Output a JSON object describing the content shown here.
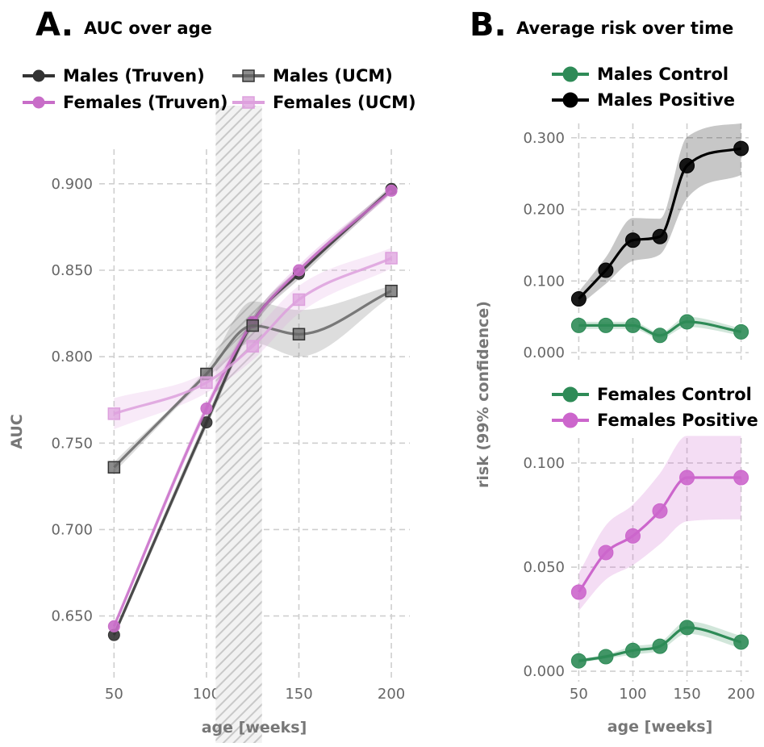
{
  "colors": {
    "males_truven": "#333333",
    "females_truven": "#c86dc8",
    "males_ucm": "#666666",
    "females_ucm": "#dda0dd",
    "control": "#2e8b57",
    "males_positive": "#000000",
    "females_positive": "#cc66cc"
  },
  "chart_data": [
    {
      "panel": "A.",
      "type": "line",
      "title": "AUC over age",
      "xlabel": "age [weeks]",
      "ylabel": "AUC",
      "xlim": [
        42,
        210
      ],
      "ylim": [
        0.612,
        0.92
      ],
      "x_ticks": [
        50,
        100,
        150,
        200
      ],
      "x_tick_labels": [
        "50",
        "100",
        "150",
        "200"
      ],
      "y_ticks": [
        0.65,
        0.7,
        0.75,
        0.8,
        0.85,
        0.9
      ],
      "y_tick_labels": [
        "0.650",
        "0.700",
        "0.750",
        "0.800",
        "0.850",
        "0.900"
      ],
      "grid": true,
      "legend": "top",
      "shaded_interval": [
        105,
        130
      ],
      "series": [
        {
          "name": "Males (Truven)",
          "marker": "circle",
          "color_key": "males_truven",
          "x": [
            50,
            100,
            125,
            150,
            200
          ],
          "y": [
            0.639,
            0.762,
            0.82,
            0.848,
            0.897
          ],
          "band_lo": [
            0.637,
            0.759,
            0.817,
            0.845,
            0.895
          ],
          "band_hi": [
            0.641,
            0.765,
            0.823,
            0.851,
            0.899
          ]
        },
        {
          "name": "Females (Truven)",
          "marker": "circle",
          "color_key": "females_truven",
          "x": [
            50,
            100,
            125,
            150,
            200
          ],
          "y": [
            0.644,
            0.77,
            0.82,
            0.85,
            0.896
          ],
          "band_lo": [
            0.642,
            0.767,
            0.817,
            0.847,
            0.894
          ],
          "band_hi": [
            0.646,
            0.773,
            0.823,
            0.853,
            0.898
          ]
        },
        {
          "name": "Males (UCM)",
          "marker": "square",
          "color_key": "males_ucm",
          "x": [
            50,
            100,
            125,
            150,
            200
          ],
          "y": [
            0.736,
            0.79,
            0.818,
            0.813,
            0.838
          ],
          "band_lo": [
            0.733,
            0.787,
            0.808,
            0.8,
            0.835
          ],
          "band_hi": [
            0.739,
            0.793,
            0.832,
            0.827,
            0.841
          ]
        },
        {
          "name": "Females (UCM)",
          "marker": "square",
          "color_key": "females_ucm",
          "x": [
            50,
            100,
            125,
            150,
            200
          ],
          "y": [
            0.767,
            0.785,
            0.806,
            0.833,
            0.857
          ],
          "band_lo": [
            0.758,
            0.779,
            0.798,
            0.825,
            0.851
          ],
          "band_hi": [
            0.776,
            0.791,
            0.814,
            0.841,
            0.863
          ]
        }
      ]
    },
    {
      "panel": "B.",
      "type": "line",
      "title": "Average risk over time",
      "xlabel": "age [weeks]",
      "ylabel": "risk (99% confidence)",
      "x_ticks": [
        50,
        100,
        150,
        200
      ],
      "x_tick_labels": [
        "50",
        "100",
        "150",
        "200"
      ],
      "grid": true,
      "subplots": [
        {
          "name": "males",
          "xlim": [
            43,
            207
          ],
          "ylim": [
            -0.01,
            0.32
          ],
          "y_ticks": [
            0.0,
            0.1,
            0.2,
            0.3
          ],
          "y_tick_labels": [
            "0.000",
            "0.100",
            "0.200",
            "0.300"
          ],
          "legend": "top",
          "series": [
            {
              "name": "Males Control",
              "marker": "circle",
              "color_key": "control",
              "x": [
                50,
                75,
                100,
                125,
                150,
                200
              ],
              "y": [
                0.038,
                0.038,
                0.038,
                0.024,
                0.043,
                0.029
              ],
              "band_lo": [
                0.033,
                0.033,
                0.033,
                0.02,
                0.036,
                0.024
              ],
              "band_hi": [
                0.043,
                0.043,
                0.043,
                0.028,
                0.05,
                0.034
              ]
            },
            {
              "name": "Males Positive",
              "marker": "circle",
              "color_key": "males_positive",
              "x": [
                50,
                75,
                100,
                125,
                150,
                200
              ],
              "y": [
                0.075,
                0.115,
                0.157,
                0.162,
                0.261,
                0.285
              ],
              "band_lo": [
                0.065,
                0.096,
                0.128,
                0.137,
                0.215,
                0.248
              ],
              "band_hi": [
                0.085,
                0.133,
                0.188,
                0.187,
                0.301,
                0.32
              ]
            }
          ]
        },
        {
          "name": "females",
          "xlim": [
            43,
            207
          ],
          "ylim": [
            -0.005,
            0.112
          ],
          "y_ticks": [
            0.0,
            0.05,
            0.1
          ],
          "y_tick_labels": [
            "0.000",
            "0.050",
            "0.100"
          ],
          "legend": "top",
          "series": [
            {
              "name": "Females Control",
              "marker": "circle",
              "color_key": "control",
              "x": [
                50,
                75,
                100,
                125,
                150,
                200
              ],
              "y": [
                0.005,
                0.007,
                0.01,
                0.012,
                0.021,
                0.014
              ],
              "band_lo": [
                0.004,
                0.006,
                0.008,
                0.01,
                0.018,
                0.011
              ],
              "band_hi": [
                0.006,
                0.008,
                0.012,
                0.014,
                0.024,
                0.017
              ]
            },
            {
              "name": "Females Positive",
              "marker": "circle",
              "color_key": "females_positive",
              "x": [
                50,
                75,
                100,
                125,
                150,
                200
              ],
              "y": [
                0.038,
                0.057,
                0.065,
                0.077,
                0.093,
                0.093
              ],
              "band_lo": [
                0.029,
                0.044,
                0.051,
                0.061,
                0.072,
                0.073
              ],
              "band_hi": [
                0.047,
                0.07,
                0.08,
                0.095,
                0.113,
                0.113
              ]
            }
          ]
        }
      ]
    }
  ]
}
